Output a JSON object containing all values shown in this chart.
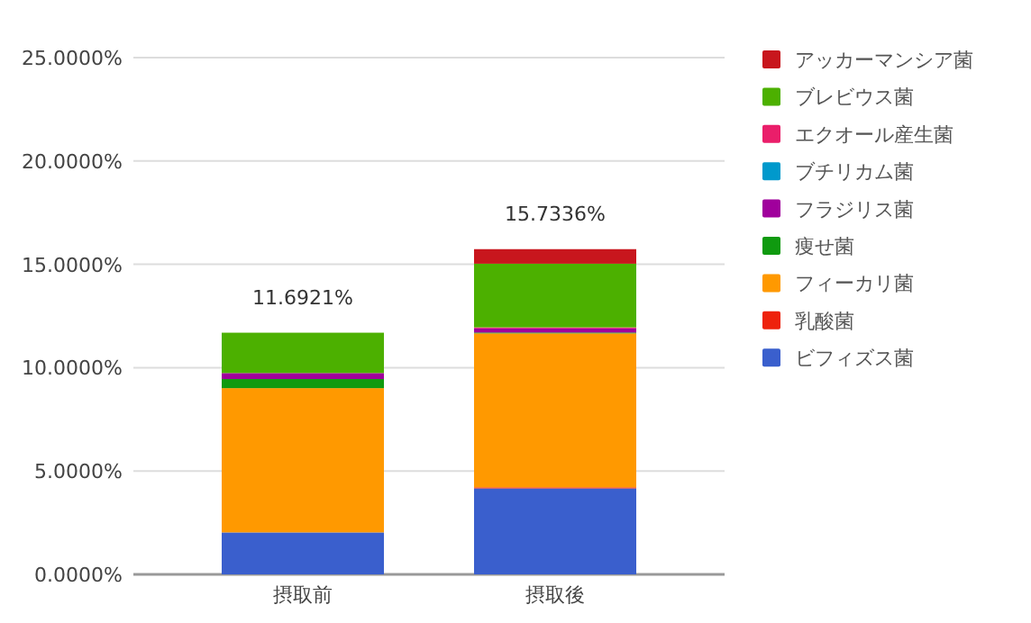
{
  "chart_data": {
    "type": "bar",
    "stacked": true,
    "categories": [
      "摂取前",
      "摂取後"
    ],
    "series": [
      {
        "name": "ビフィズス菌",
        "color": "#3a5fcd",
        "values": [
          2.03,
          4.16
        ]
      },
      {
        "name": "乳酸菌",
        "color": "#ee220c",
        "values": [
          0,
          0.05
        ]
      },
      {
        "name": "フィーカリ菌",
        "color": "#ff9900",
        "values": [
          6.98,
          7.45
        ]
      },
      {
        "name": "痩せ菌",
        "color": "#0f9a0f",
        "values": [
          0.44,
          0.04
        ]
      },
      {
        "name": "フラジリス菌",
        "color": "#a0009c",
        "values": [
          0.29,
          0.2
        ]
      },
      {
        "name": "ブチリカム菌",
        "color": "#0099cc",
        "values": [
          0,
          0
        ]
      },
      {
        "name": "エクオール産生菌",
        "color": "#ea1e6a",
        "values": [
          0,
          0.05
        ]
      },
      {
        "name": "ブレビウス菌",
        "color": "#4cb000",
        "values": [
          1.9521,
          3.08
        ]
      },
      {
        "name": "アッカーマンシア菌",
        "color": "#c8161d",
        "values": [
          0,
          0.7036
        ]
      }
    ],
    "totals": [
      "11.6921%",
      "15.7336%"
    ],
    "ylim": [
      0,
      25
    ],
    "yticks": [
      {
        "value": 0,
        "label": "0.0000%"
      },
      {
        "value": 5,
        "label": "5.0000%"
      },
      {
        "value": 10,
        "label": "10.0000%"
      },
      {
        "value": 15,
        "label": "15.0000%"
      },
      {
        "value": 20,
        "label": "20.0000%"
      },
      {
        "value": 25,
        "label": "25.0000%"
      }
    ],
    "grid": "y",
    "legend": "right"
  }
}
